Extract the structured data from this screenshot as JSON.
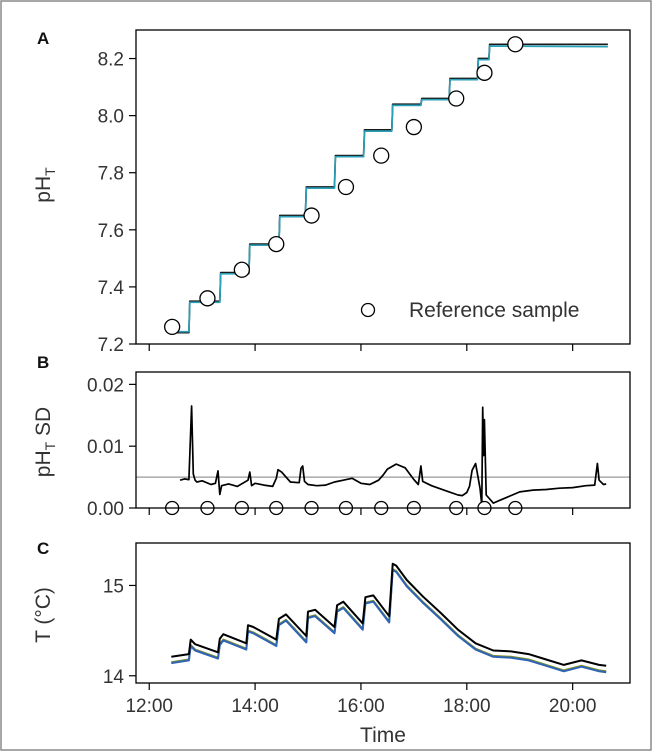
{
  "chart_data": [
    {
      "panel": "A",
      "type": "line",
      "ylabel": "pH",
      "ylabel_sub": "T",
      "ylim": [
        7.2,
        8.3
      ],
      "yticks": [
        7.2,
        7.4,
        7.6,
        7.8,
        8.0,
        8.2
      ],
      "ytick_labels": [
        "7.2",
        "7.4",
        "7.6",
        "7.8",
        "8.0",
        "8.2"
      ],
      "xlim": [
        "12:00",
        "21:00"
      ],
      "legend": {
        "label": "Reference sample",
        "position": "bottom-right"
      },
      "series": [
        {
          "color": "#1a1a1a",
          "x": [
            "12:25",
            "12:45",
            "12:46",
            "13:20",
            "13:21",
            "13:53",
            "13:54",
            "14:27",
            "14:28",
            "14:57",
            "14:58",
            "15:30",
            "15:31",
            "16:03",
            "16:04",
            "16:35",
            "16:36",
            "17:08",
            "17:09",
            "17:40",
            "17:41",
            "18:12",
            "18:13",
            "18:25",
            "18:26",
            "20:40"
          ],
          "y": [
            7.24,
            7.24,
            7.35,
            7.35,
            7.45,
            7.45,
            7.55,
            7.55,
            7.65,
            7.65,
            7.75,
            7.75,
            7.86,
            7.86,
            7.95,
            7.95,
            8.04,
            8.04,
            8.06,
            8.06,
            8.13,
            8.13,
            8.2,
            8.2,
            8.25,
            8.25
          ]
        },
        {
          "color": "#2a9fb8",
          "x": [
            "12:25",
            "12:45",
            "12:46",
            "13:20",
            "13:21",
            "13:53",
            "13:54",
            "14:27",
            "14:28",
            "14:57",
            "14:58",
            "15:30",
            "15:31",
            "16:03",
            "16:04",
            "16:35",
            "16:36",
            "17:08",
            "17:09",
            "17:40",
            "17:41",
            "18:12",
            "18:13",
            "18:25",
            "18:26",
            "20:40"
          ],
          "y": [
            7.243,
            7.243,
            7.346,
            7.346,
            7.446,
            7.446,
            7.546,
            7.546,
            7.646,
            7.646,
            7.746,
            7.746,
            7.856,
            7.856,
            7.946,
            7.946,
            8.036,
            8.036,
            8.056,
            8.056,
            8.126,
            8.126,
            8.196,
            8.196,
            8.244,
            8.242
          ]
        }
      ],
      "reference_samples": {
        "x": [
          "12:26",
          "13:06",
          "13:45",
          "14:24",
          "15:04",
          "15:43",
          "16:23",
          "17:00",
          "17:48",
          "18:20",
          "18:55"
        ],
        "y": [
          7.26,
          7.36,
          7.46,
          7.55,
          7.65,
          7.75,
          7.86,
          7.96,
          8.06,
          8.15,
          8.25
        ]
      }
    },
    {
      "panel": "B",
      "type": "line",
      "ylabel": "pH",
      "ylabel_sub": "T",
      "ylabel_suffix": " SD",
      "ylim": [
        0,
        0.022
      ],
      "yticks": [
        0,
        0.01,
        0.02
      ],
      "ytick_labels": [
        "0.00",
        "0.01",
        "0.02"
      ],
      "reference_line": {
        "y": 0.005,
        "color": "#9a9a9a"
      },
      "series": [
        {
          "color": "#000000",
          "x": [
            "12:35",
            "12:40",
            "12:45",
            "12:48",
            "12:50",
            "12:52",
            "12:54",
            "13:00",
            "13:10",
            "13:15",
            "13:18",
            "13:20",
            "13:22",
            "13:30",
            "13:40",
            "13:52",
            "13:54",
            "13:56",
            "14:00",
            "14:10",
            "14:20",
            "14:24",
            "14:26",
            "14:30",
            "14:40",
            "14:50",
            "14:52",
            "14:54",
            "14:56",
            "15:00",
            "15:10",
            "15:20",
            "15:30",
            "15:40",
            "15:50",
            "16:00",
            "16:10",
            "16:20",
            "16:25",
            "16:30",
            "16:40",
            "16:50",
            "17:00",
            "17:05",
            "17:08",
            "17:10",
            "17:20",
            "17:30",
            "17:40",
            "17:50",
            "17:55",
            "18:00",
            "18:03",
            "18:06",
            "18:10",
            "18:15",
            "18:17",
            "18:18",
            "18:19",
            "18:20",
            "18:22",
            "18:30",
            "18:40",
            "18:50",
            "19:00",
            "19:15",
            "19:30",
            "19:45",
            "20:00",
            "20:15",
            "20:25",
            "20:28",
            "20:30",
            "20:35",
            "20:38"
          ],
          "y": [
            0.0045,
            0.0047,
            0.0046,
            0.0165,
            0.0055,
            0.0045,
            0.0042,
            0.0044,
            0.0038,
            0.004,
            0.006,
            0.0022,
            0.0036,
            0.0039,
            0.0035,
            0.0045,
            0.0058,
            0.0036,
            0.004,
            0.0037,
            0.0035,
            0.0048,
            0.0062,
            0.0058,
            0.0042,
            0.0041,
            0.0064,
            0.0068,
            0.0043,
            0.0038,
            0.0036,
            0.0037,
            0.0042,
            0.0045,
            0.0048,
            0.004,
            0.0038,
            0.0045,
            0.0053,
            0.0063,
            0.0071,
            0.0065,
            0.0046,
            0.0038,
            0.0068,
            0.0043,
            0.0036,
            0.0031,
            0.0026,
            0.0021,
            0.002,
            0.0025,
            0.0035,
            0.0061,
            0.0072,
            0.0032,
            0.0005,
            0.0163,
            0.0085,
            0.0143,
            0.0021,
            0.0008,
            0.0014,
            0.002,
            0.0026,
            0.0029,
            0.003,
            0.0032,
            0.0033,
            0.0036,
            0.0037,
            0.0072,
            0.0045,
            0.0038,
            0.0039
          ]
        }
      ],
      "reference_samples": {
        "x": [
          "12:26",
          "13:06",
          "13:45",
          "14:24",
          "15:04",
          "15:43",
          "16:23",
          "17:00",
          "17:48",
          "18:20",
          "18:55"
        ],
        "y": [
          0,
          0,
          0,
          0,
          0,
          0,
          0,
          0,
          0,
          0,
          0
        ]
      }
    },
    {
      "panel": "C",
      "type": "line",
      "ylabel": "T (°C)",
      "ylim": [
        13.92,
        15.47
      ],
      "yticks": [
        14,
        15
      ],
      "ytick_labels": [
        "14",
        "15"
      ],
      "xlabel": "Time",
      "xticks": [
        "12:00",
        "14:00",
        "16:00",
        "18:00",
        "20:00"
      ],
      "xtick_labels": [
        "12:00",
        "14:00",
        "16:00",
        "18:00",
        "20:00"
      ],
      "series": [
        {
          "color": "#7a8f2a",
          "x": [
            "12:25",
            "12:45",
            "12:47",
            "12:52",
            "13:18",
            "13:20",
            "13:24",
            "13:50",
            "13:52",
            "13:58",
            "14:24",
            "14:27",
            "14:35",
            "14:58",
            "15:00",
            "15:08",
            "15:30",
            "15:33",
            "15:40",
            "16:02",
            "16:05",
            "16:14",
            "16:32",
            "16:36",
            "16:40",
            "16:52",
            "17:10",
            "17:30",
            "17:50",
            "18:10",
            "18:30",
            "18:50",
            "19:10",
            "19:30",
            "19:50",
            "20:10",
            "20:30",
            "20:38"
          ],
          "y": [
            14.15,
            14.18,
            14.34,
            14.29,
            14.2,
            14.35,
            14.4,
            14.3,
            14.5,
            14.48,
            14.34,
            14.57,
            14.62,
            14.38,
            14.65,
            14.67,
            14.48,
            14.72,
            14.76,
            14.52,
            14.81,
            14.83,
            14.6,
            15.18,
            15.16,
            15.0,
            14.82,
            14.64,
            14.45,
            14.3,
            14.22,
            14.21,
            14.18,
            14.12,
            14.06,
            14.11,
            14.06,
            14.05
          ]
        },
        {
          "color": "#2f63b6",
          "x": [
            "12:25",
            "12:45",
            "12:47",
            "12:52",
            "13:18",
            "13:20",
            "13:24",
            "13:50",
            "13:52",
            "13:58",
            "14:24",
            "14:27",
            "14:35",
            "14:58",
            "15:00",
            "15:08",
            "15:30",
            "15:33",
            "15:40",
            "16:02",
            "16:05",
            "16:14",
            "16:32",
            "16:36",
            "16:40",
            "16:52",
            "17:10",
            "17:30",
            "17:50",
            "18:10",
            "18:30",
            "18:50",
            "19:10",
            "19:30",
            "19:50",
            "20:10",
            "20:30",
            "20:38"
          ],
          "y": [
            14.14,
            14.17,
            14.33,
            14.28,
            14.19,
            14.34,
            14.39,
            14.29,
            14.49,
            14.47,
            14.33,
            14.56,
            14.61,
            14.37,
            14.64,
            14.66,
            14.47,
            14.71,
            14.75,
            14.51,
            14.8,
            14.82,
            14.59,
            15.17,
            15.15,
            14.99,
            14.81,
            14.63,
            14.44,
            14.29,
            14.21,
            14.2,
            14.17,
            14.11,
            14.05,
            14.1,
            14.05,
            14.04
          ]
        },
        {
          "color": "#000000",
          "x": [
            "12:25",
            "12:45",
            "12:47",
            "12:52",
            "13:18",
            "13:20",
            "13:24",
            "13:50",
            "13:52",
            "13:58",
            "14:24",
            "14:27",
            "14:35",
            "14:58",
            "15:00",
            "15:08",
            "15:30",
            "15:33",
            "15:40",
            "16:02",
            "16:05",
            "16:14",
            "16:32",
            "16:36",
            "16:40",
            "16:52",
            "17:10",
            "17:30",
            "17:50",
            "18:10",
            "18:30",
            "18:50",
            "19:10",
            "19:30",
            "19:50",
            "20:10",
            "20:30",
            "20:38"
          ],
          "y": [
            14.21,
            14.24,
            14.4,
            14.35,
            14.26,
            14.41,
            14.46,
            14.36,
            14.56,
            14.54,
            14.4,
            14.63,
            14.68,
            14.44,
            14.71,
            14.73,
            14.54,
            14.78,
            14.82,
            14.58,
            14.87,
            14.89,
            14.66,
            15.24,
            15.22,
            15.06,
            14.88,
            14.7,
            14.51,
            14.36,
            14.28,
            14.27,
            14.24,
            14.18,
            14.12,
            14.17,
            14.12,
            14.11
          ]
        }
      ]
    }
  ]
}
